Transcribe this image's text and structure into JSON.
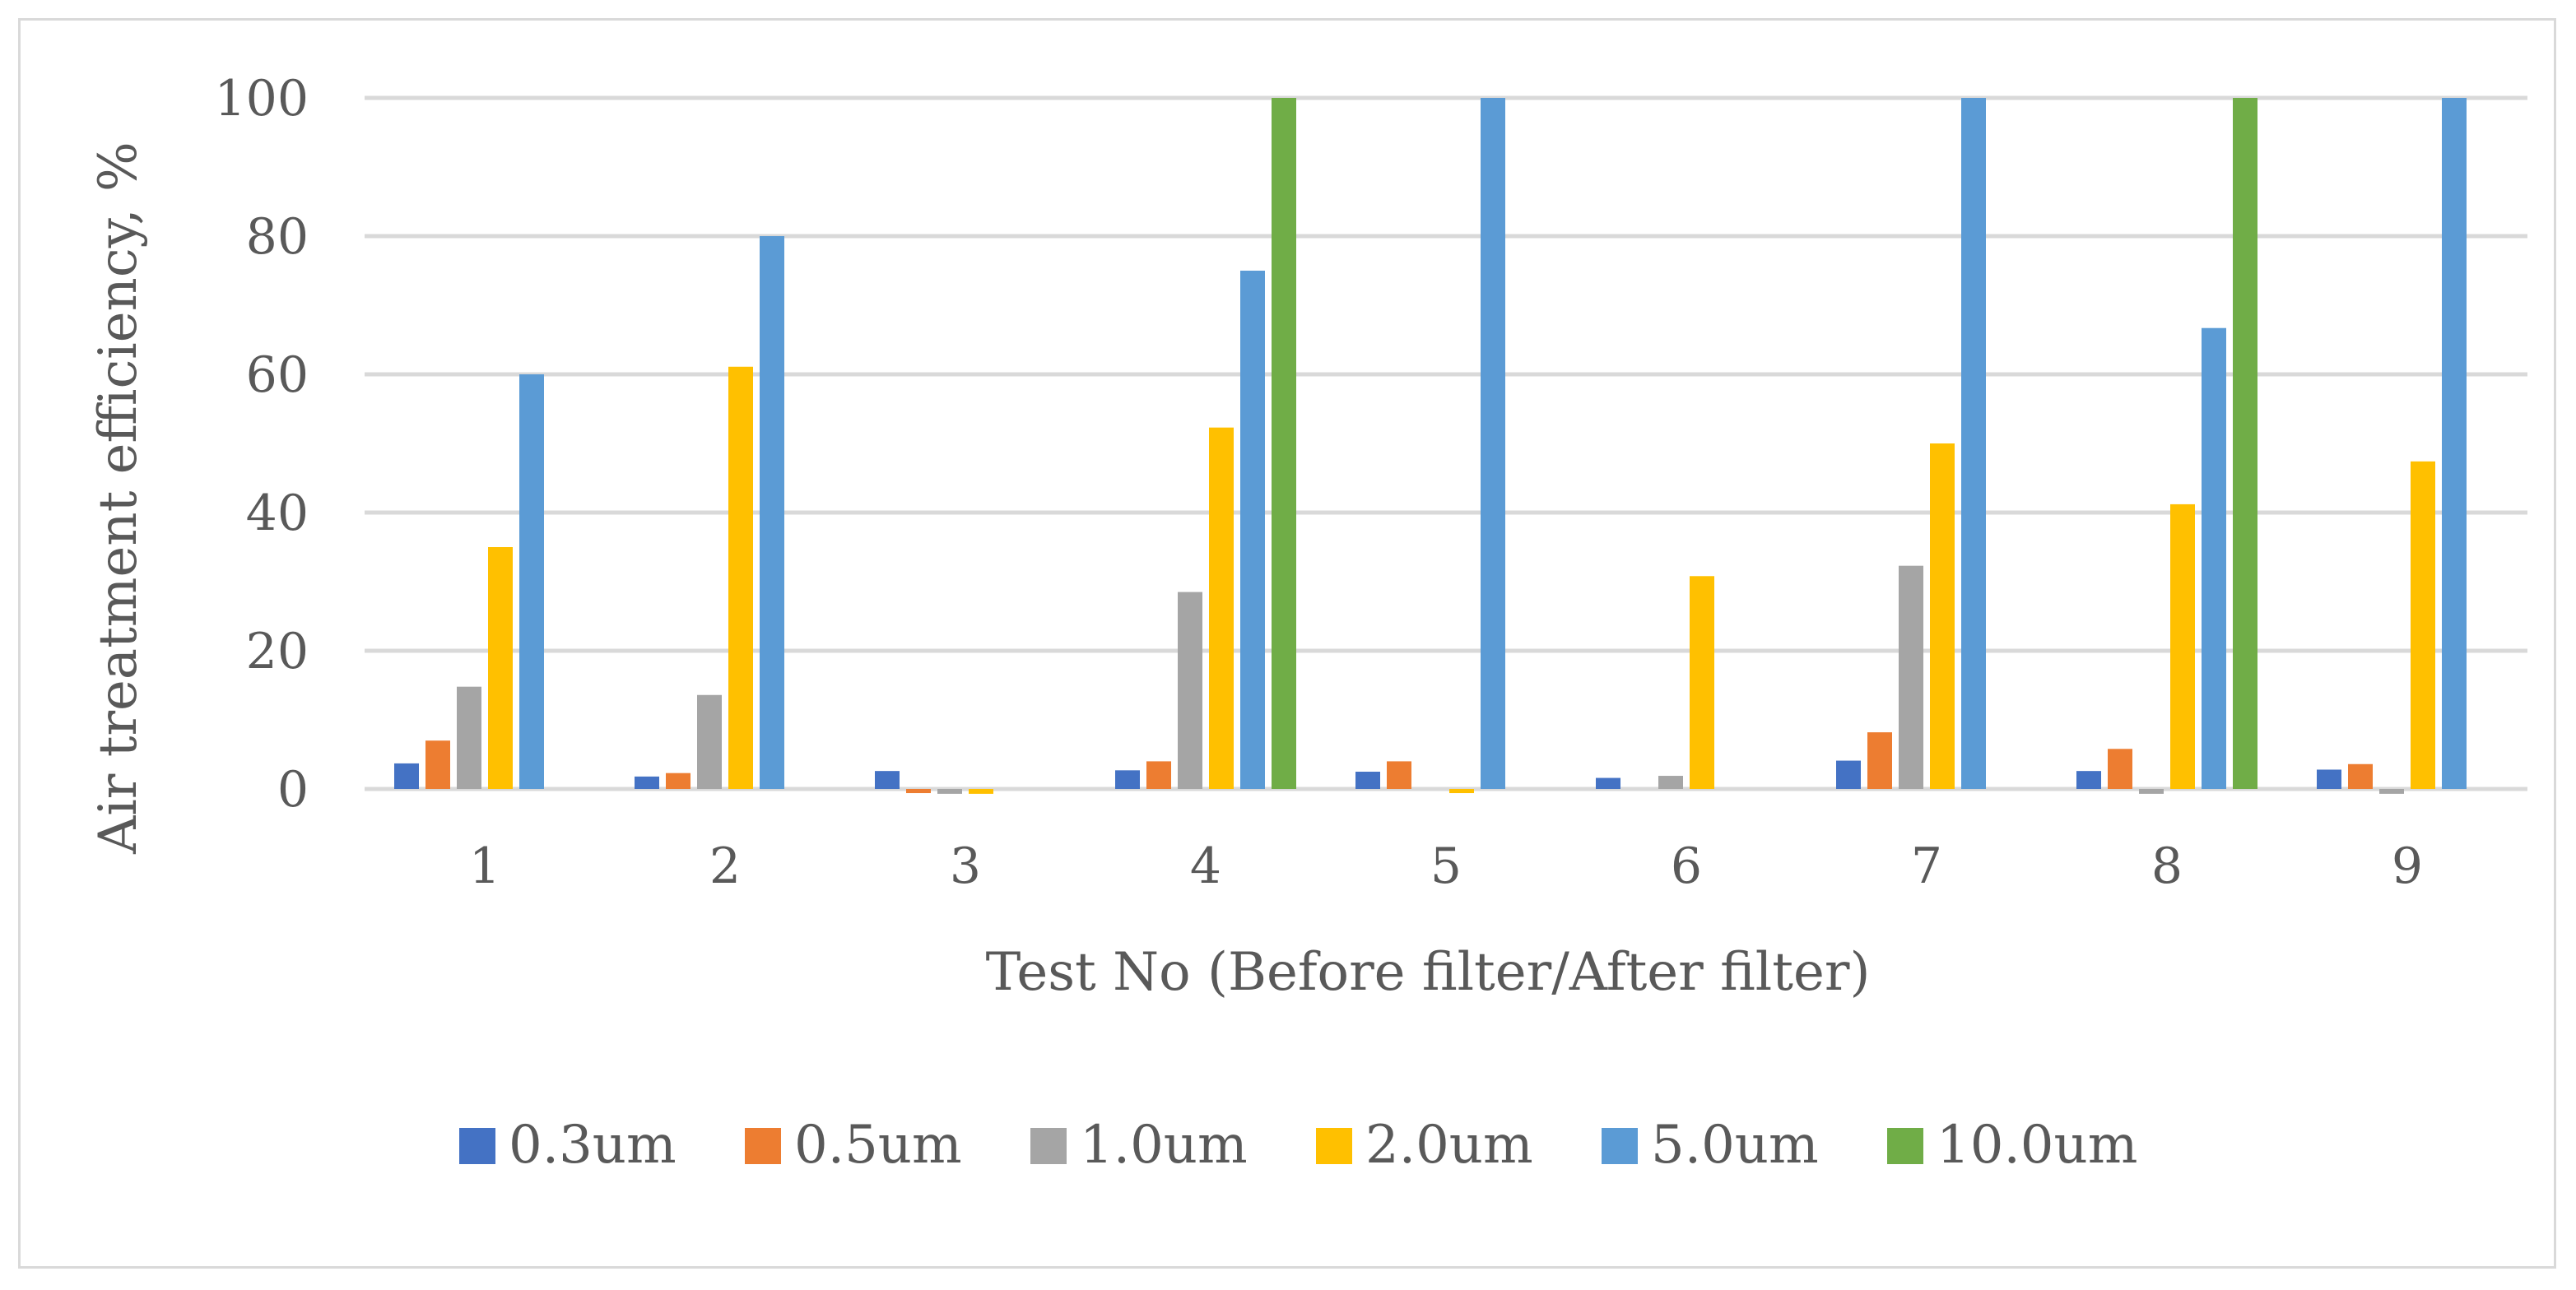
{
  "chart_data": {
    "type": "bar",
    "title": "",
    "xlabel": "Test No (Before filter/After filter)",
    "ylabel": "Air treatment efficiency, %",
    "ylim": [
      0,
      100
    ],
    "yticks": [
      0,
      20,
      40,
      60,
      80,
      100
    ],
    "grid": true,
    "legend_position": "bottom",
    "categories": [
      "1",
      "2",
      "3",
      "4",
      "5",
      "6",
      "7",
      "8",
      "9"
    ],
    "series": [
      {
        "name": "0.3um",
        "color": "#4472c4",
        "values": [
          3.7,
          1.8,
          2.6,
          2.7,
          2.5,
          1.6,
          4.1,
          2.6,
          2.8
        ]
      },
      {
        "name": "0.5um",
        "color": "#ed7d31",
        "values": [
          7.0,
          2.3,
          -0.6,
          4.0,
          4.0,
          0,
          8.2,
          5.8,
          3.6
        ]
      },
      {
        "name": "1.0um",
        "color": "#a5a5a5",
        "values": [
          14.8,
          13.6,
          -0.7,
          28.5,
          0,
          1.9,
          32.3,
          -0.7,
          -0.7
        ]
      },
      {
        "name": "2.0um",
        "color": "#ffc000",
        "values": [
          35.0,
          61.1,
          -0.7,
          52.3,
          -0.6,
          30.8,
          50.0,
          41.2,
          47.4
        ]
      },
      {
        "name": "5.0um",
        "color": "#5b9bd5",
        "values": [
          60.0,
          80.0,
          0,
          75.0,
          100,
          0,
          100,
          66.7,
          100
        ]
      },
      {
        "name": "10.0um",
        "color": "#70ad47",
        "values": [
          0,
          0,
          0,
          100,
          0,
          0,
          0,
          100,
          0
        ]
      }
    ]
  }
}
